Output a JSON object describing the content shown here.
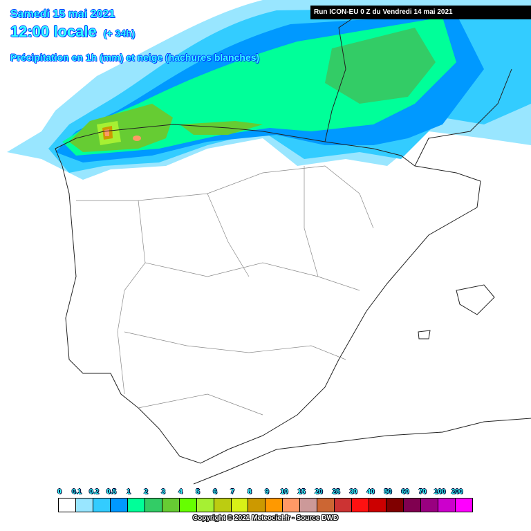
{
  "header": {
    "date": "Samedi 15 mai 2021",
    "time": "12:00 locale",
    "lead": "(+ 34h)",
    "parameter": "Précipitation en 1h (mm) et neige (hachures blanches)"
  },
  "run_label": "Run ICON-EU 0 Z du Vendredi 14 mai 2021",
  "legend": {
    "labels": [
      "0",
      "0.1",
      "0.2",
      "0.5",
      "1",
      "2",
      "3",
      "4",
      "5",
      "6",
      "7",
      "8",
      "9",
      "10",
      "15",
      "20",
      "25",
      "30",
      "40",
      "50",
      "60",
      "70",
      "100",
      "200"
    ],
    "colors": [
      "#ffffff",
      "#99e6ff",
      "#33ccff",
      "#0099ff",
      "#00ff99",
      "#33cc66",
      "#66cc33",
      "#66ff00",
      "#a6f033",
      "#bccc11",
      "#d9f017",
      "#cc9900",
      "#ff9900",
      "#ff9966",
      "#cc9999",
      "#cc6633",
      "#cc3333",
      "#ff1111",
      "#cc0000",
      "#800000",
      "#800050",
      "#990080",
      "#cc00cc",
      "#ff00ff"
    ]
  },
  "copyright": "Copyright © 2021 Meteociel.fr - Source DWD"
}
